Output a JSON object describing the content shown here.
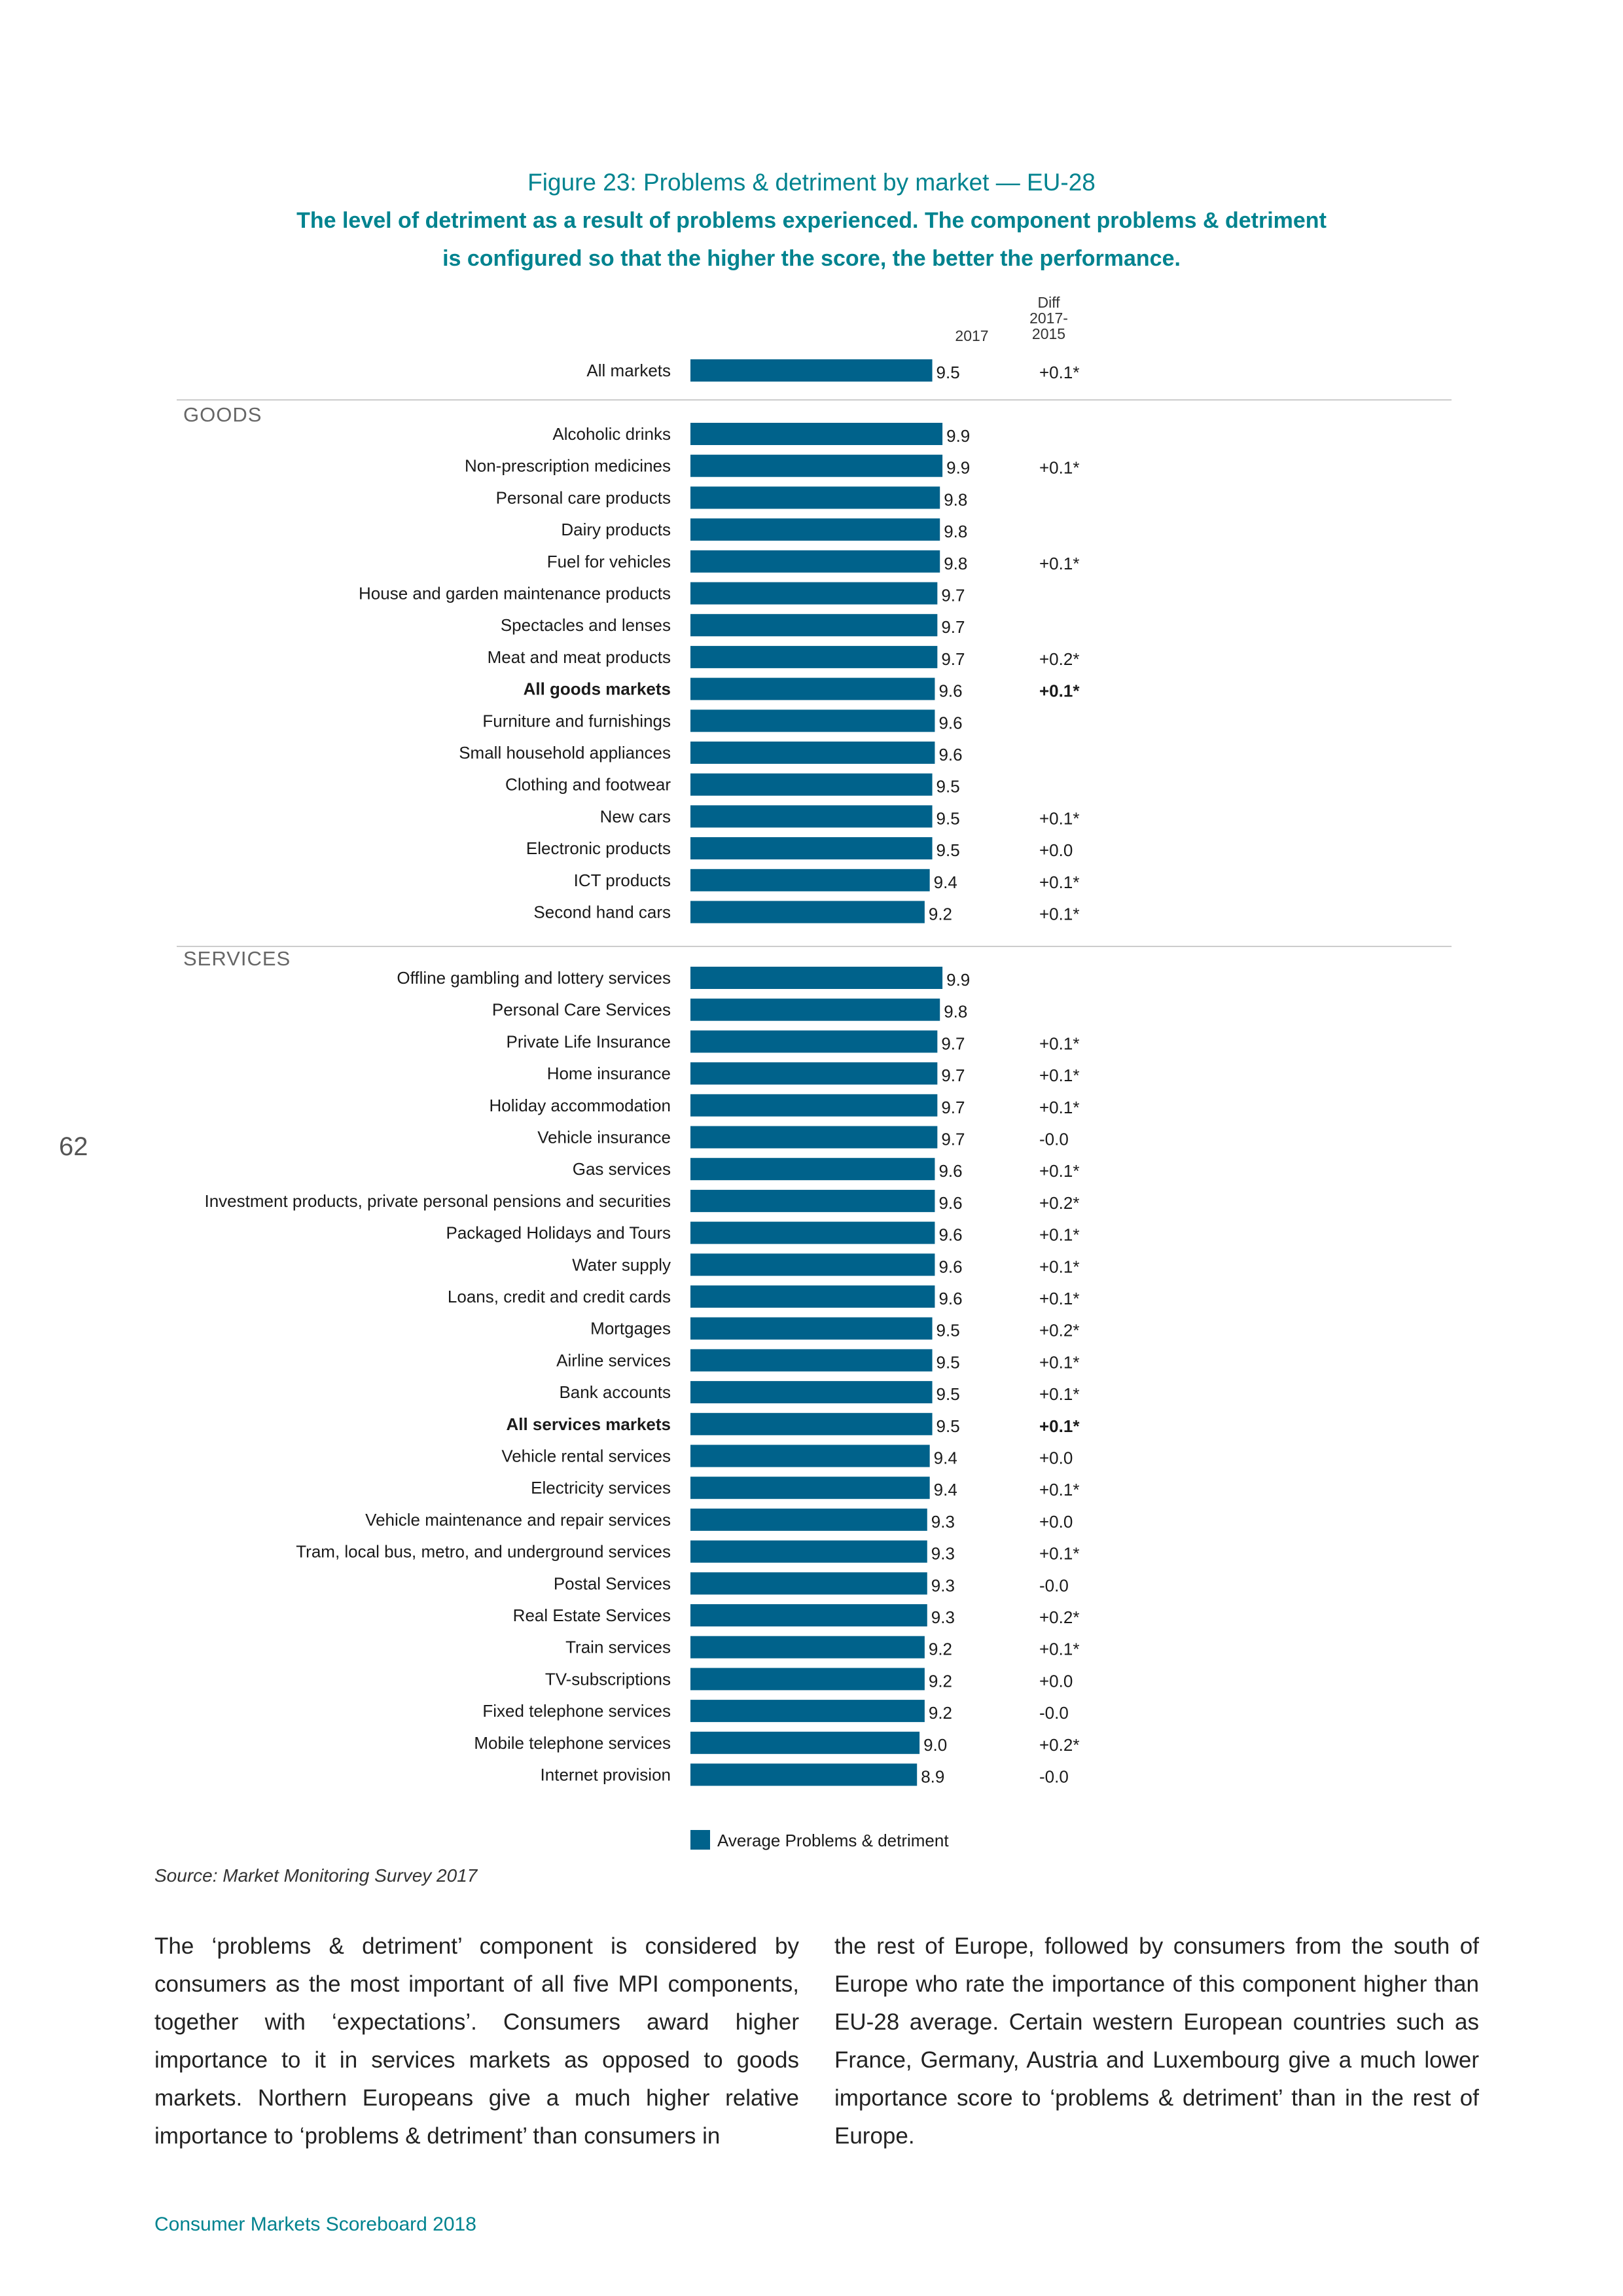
{
  "figure": {
    "title": "Figure 23: Problems & detriment by market — EU-28",
    "subtitle_line1": "The level of detriment as a result of problems experienced. The component problems & detriment",
    "subtitle_line2": "is configured so that the higher the score, the better the performance."
  },
  "columns": {
    "year": "2017",
    "diff": "Diff\n2017-\n2015"
  },
  "chart_data": {
    "type": "bar",
    "orientation": "horizontal",
    "title": "Figure 23: Problems & detriment by market — EU-28",
    "xlim": [
      0,
      10
    ],
    "grid": false,
    "legend_position": "bottom",
    "series": [
      {
        "name": "Average Problems & detriment",
        "color": "#00628b"
      }
    ],
    "sections": [
      {
        "name": "",
        "rows": [
          {
            "label": "All markets",
            "value": 9.5,
            "diff": "+0.1*",
            "bold": false
          }
        ]
      },
      {
        "name": "GOODS",
        "rows": [
          {
            "label": "Alcoholic drinks",
            "value": 9.9,
            "diff": "",
            "bold": false
          },
          {
            "label": "Non-prescription medicines",
            "value": 9.9,
            "diff": "+0.1*",
            "bold": false
          },
          {
            "label": "Personal care products",
            "value": 9.8,
            "diff": "",
            "bold": false
          },
          {
            "label": "Dairy products",
            "value": 9.8,
            "diff": "",
            "bold": false
          },
          {
            "label": "Fuel for vehicles",
            "value": 9.8,
            "diff": "+0.1*",
            "bold": false
          },
          {
            "label": "House and garden maintenance products",
            "value": 9.7,
            "diff": "",
            "bold": false
          },
          {
            "label": "Spectacles and lenses",
            "value": 9.7,
            "diff": "",
            "bold": false
          },
          {
            "label": "Meat and meat products",
            "value": 9.7,
            "diff": "+0.2*",
            "bold": false
          },
          {
            "label": "All goods markets",
            "value": 9.6,
            "diff": "+0.1*",
            "bold": true
          },
          {
            "label": "Furniture and furnishings",
            "value": 9.6,
            "diff": "",
            "bold": false
          },
          {
            "label": "Small household appliances",
            "value": 9.6,
            "diff": "",
            "bold": false
          },
          {
            "label": "Clothing and footwear",
            "value": 9.5,
            "diff": "",
            "bold": false
          },
          {
            "label": "New cars",
            "value": 9.5,
            "diff": "+0.1*",
            "bold": false
          },
          {
            "label": "Electronic products",
            "value": 9.5,
            "diff": "+0.0",
            "bold": false
          },
          {
            "label": "ICT products",
            "value": 9.4,
            "diff": "+0.1*",
            "bold": false
          },
          {
            "label": "Second hand cars",
            "value": 9.2,
            "diff": "+0.1*",
            "bold": false
          }
        ]
      },
      {
        "name": "SERVICES",
        "rows": [
          {
            "label": "Offline gambling and lottery services",
            "value": 9.9,
            "diff": "",
            "bold": false
          },
          {
            "label": "Personal Care Services",
            "value": 9.8,
            "diff": "",
            "bold": false
          },
          {
            "label": "Private Life Insurance",
            "value": 9.7,
            "diff": "+0.1*",
            "bold": false
          },
          {
            "label": "Home insurance",
            "value": 9.7,
            "diff": "+0.1*",
            "bold": false
          },
          {
            "label": "Holiday accommodation",
            "value": 9.7,
            "diff": "+0.1*",
            "bold": false
          },
          {
            "label": "Vehicle insurance",
            "value": 9.7,
            "diff": "-0.0",
            "bold": false
          },
          {
            "label": "Gas services",
            "value": 9.6,
            "diff": "+0.1*",
            "bold": false
          },
          {
            "label": "Investment products, private personal pensions and securities",
            "value": 9.6,
            "diff": "+0.2*",
            "bold": false
          },
          {
            "label": "Packaged Holidays and Tours",
            "value": 9.6,
            "diff": "+0.1*",
            "bold": false
          },
          {
            "label": "Water supply",
            "value": 9.6,
            "diff": "+0.1*",
            "bold": false
          },
          {
            "label": "Loans, credit and credit cards",
            "value": 9.6,
            "diff": "+0.1*",
            "bold": false
          },
          {
            "label": "Mortgages",
            "value": 9.5,
            "diff": "+0.2*",
            "bold": false
          },
          {
            "label": "Airline services",
            "value": 9.5,
            "diff": "+0.1*",
            "bold": false
          },
          {
            "label": "Bank accounts",
            "value": 9.5,
            "diff": "+0.1*",
            "bold": false
          },
          {
            "label": "All services markets",
            "value": 9.5,
            "diff": "+0.1*",
            "bold": true
          },
          {
            "label": "Vehicle rental services",
            "value": 9.4,
            "diff": "+0.0",
            "bold": false
          },
          {
            "label": "Electricity services",
            "value": 9.4,
            "diff": "+0.1*",
            "bold": false
          },
          {
            "label": "Vehicle maintenance and repair services",
            "value": 9.3,
            "diff": "+0.0",
            "bold": false
          },
          {
            "label": "Tram, local bus, metro, and underground services",
            "value": 9.3,
            "diff": "+0.1*",
            "bold": false
          },
          {
            "label": "Postal Services",
            "value": 9.3,
            "diff": "-0.0",
            "bold": false
          },
          {
            "label": "Real Estate Services",
            "value": 9.3,
            "diff": "+0.2*",
            "bold": false
          },
          {
            "label": "Train services",
            "value": 9.2,
            "diff": "+0.1*",
            "bold": false
          },
          {
            "label": "TV-subscriptions",
            "value": 9.2,
            "diff": "+0.0",
            "bold": false
          },
          {
            "label": "Fixed telephone services",
            "value": 9.2,
            "diff": "-0.0",
            "bold": false
          },
          {
            "label": "Mobile telephone services",
            "value": 9.0,
            "diff": "+0.2*",
            "bold": false
          },
          {
            "label": "Internet provision",
            "value": 8.9,
            "diff": "-0.0",
            "bold": false
          }
        ]
      }
    ]
  },
  "source": "Source: Market Monitoring Survey 2017",
  "body_text": {
    "left": "The ‘problems & detriment’ component is considered by consumers as the most important of all five MPI components, together with ‘expectations’. Consumers award higher importance to it in services markets as opposed to goods markets. Northern Europeans give a much higher relative importance to ‘problems & detriment’ than consumers in",
    "right": "the rest of Europe, followed by consumers from the south of Europe who rate the importance of this component higher than EU-28 average. Certain western European countries such as France, Germany, Austria and Luxembourg give a much lower importance score to ‘problems & detriment’ than in the rest of Europe."
  },
  "page_number": "62",
  "footer": "Consumer Markets Scoreboard 2018"
}
